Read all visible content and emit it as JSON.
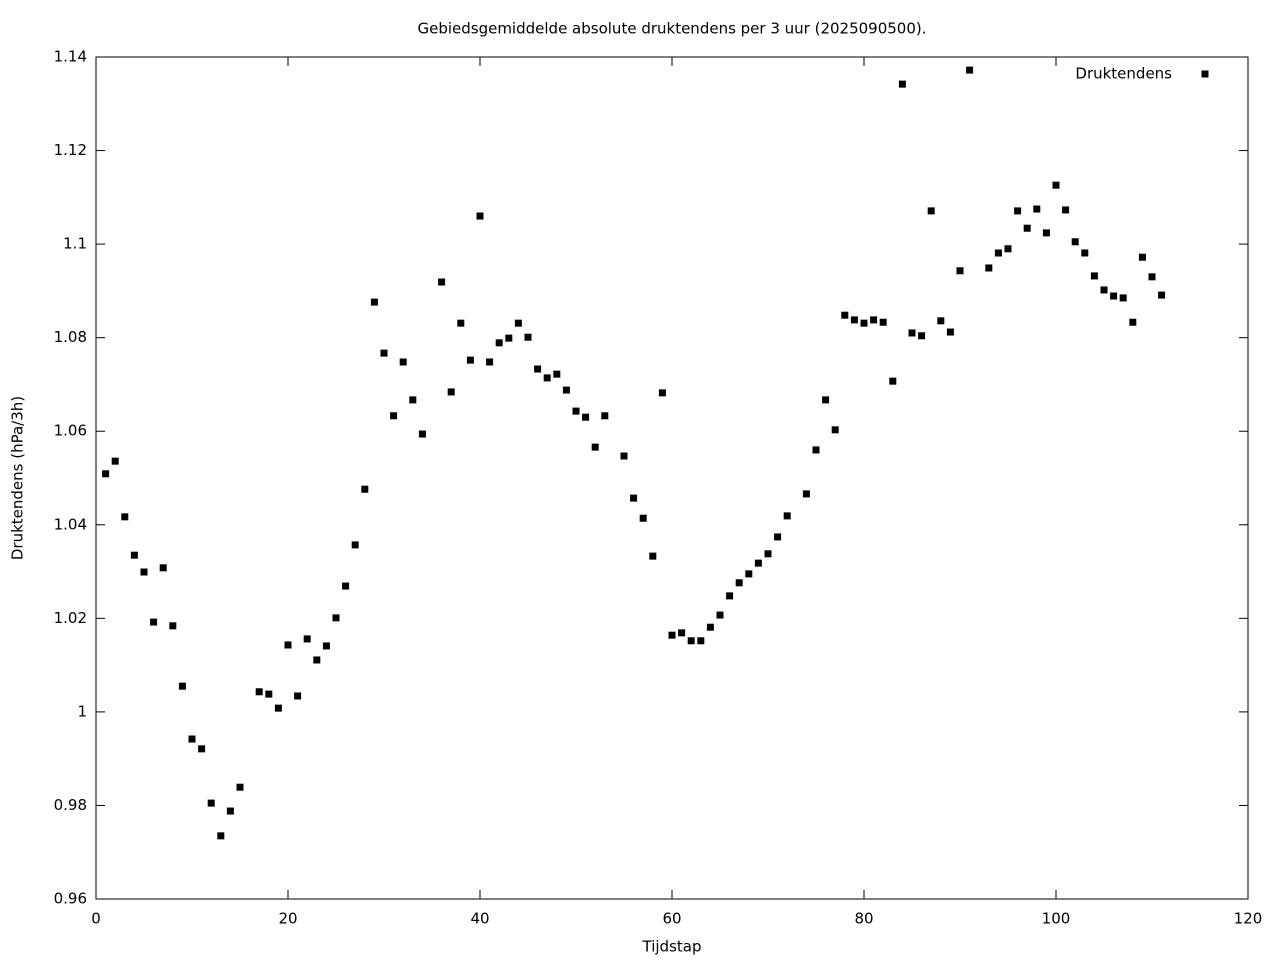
{
  "chart_data": {
    "type": "scatter",
    "title": "Gebiedsgemiddelde absolute druktendens per 3 uur (2025090500).",
    "x_label": "Tijdstap",
    "y_label": "Druktendens (hPa/3h)",
    "xlim": [
      0,
      120
    ],
    "xticks": [
      0,
      20,
      40,
      60,
      80,
      100,
      120
    ],
    "ylim": [
      0.96,
      1.14
    ],
    "yticks": [
      0.96,
      0.98,
      1,
      1.02,
      1.04,
      1.06,
      1.08,
      1.1,
      1.12,
      1.14
    ],
    "grid": false,
    "legend": "top-right",
    "series": [
      {
        "name": "Druktendens",
        "color": "#000000",
        "x": [
          1,
          2,
          3,
          4,
          5,
          6,
          7,
          8,
          9,
          10,
          11,
          12,
          13,
          14,
          15,
          17,
          18,
          19,
          20,
          21,
          22,
          23,
          24,
          25,
          26,
          27,
          28,
          29,
          30,
          31,
          32,
          33,
          34,
          36,
          37,
          38,
          39,
          40,
          41,
          42,
          43,
          44,
          45,
          46,
          47,
          48,
          49,
          50,
          51,
          52,
          53,
          55,
          56,
          57,
          58,
          59,
          60,
          61,
          62,
          63,
          64,
          65,
          66,
          67,
          68,
          69,
          70,
          71,
          72,
          74,
          75,
          76,
          77,
          78,
          79,
          80,
          81,
          82,
          83,
          84,
          85,
          86,
          87,
          88,
          89,
          90,
          91,
          93,
          94,
          95,
          96,
          97,
          98,
          99,
          100,
          101,
          102,
          103,
          104,
          105,
          106,
          107,
          108,
          109,
          110,
          111
        ],
        "values": [
          1.0509,
          1.0536,
          1.0417,
          1.0335,
          1.0299,
          1.0192,
          1.0308,
          1.0184,
          1.0055,
          0.9942,
          0.9921,
          0.9805,
          0.9735,
          0.9788,
          0.9839,
          1.0043,
          1.0038,
          1.0008,
          1.0143,
          1.0034,
          1.0156,
          1.0111,
          1.0141,
          1.0201,
          1.0269,
          1.0357,
          1.0476,
          1.0876,
          1.0767,
          1.0633,
          1.0748,
          1.0667,
          1.0594,
          1.0919,
          1.0684,
          1.0831,
          1.0752,
          1.106,
          1.0748,
          1.0789,
          1.0799,
          1.0831,
          1.0801,
          1.0733,
          1.0714,
          1.0722,
          1.0688,
          1.0643,
          1.063,
          1.0566,
          1.0633,
          1.0547,
          1.0457,
          1.0414,
          1.0333,
          1.0682,
          1.0164,
          1.0169,
          1.0152,
          1.0152,
          1.0181,
          1.0207,
          1.0248,
          1.0276,
          1.0295,
          1.0318,
          1.0338,
          1.0374,
          1.0419,
          1.0466,
          1.056,
          1.0667,
          1.0603,
          1.0848,
          1.0838,
          1.0831,
          1.0838,
          1.0833,
          1.0707,
          1.1342,
          1.081,
          1.0804,
          1.1071,
          1.0836,
          1.0812,
          1.0943,
          1.1372,
          1.0949,
          1.0981,
          1.099,
          1.1071,
          1.1034,
          1.1075,
          1.1024,
          1.1126,
          1.1073,
          1.1005,
          1.0981,
          1.0932,
          1.0902,
          1.0889,
          1.0885,
          1.0833,
          1.0972,
          1.093,
          1.0891
        ]
      }
    ]
  }
}
